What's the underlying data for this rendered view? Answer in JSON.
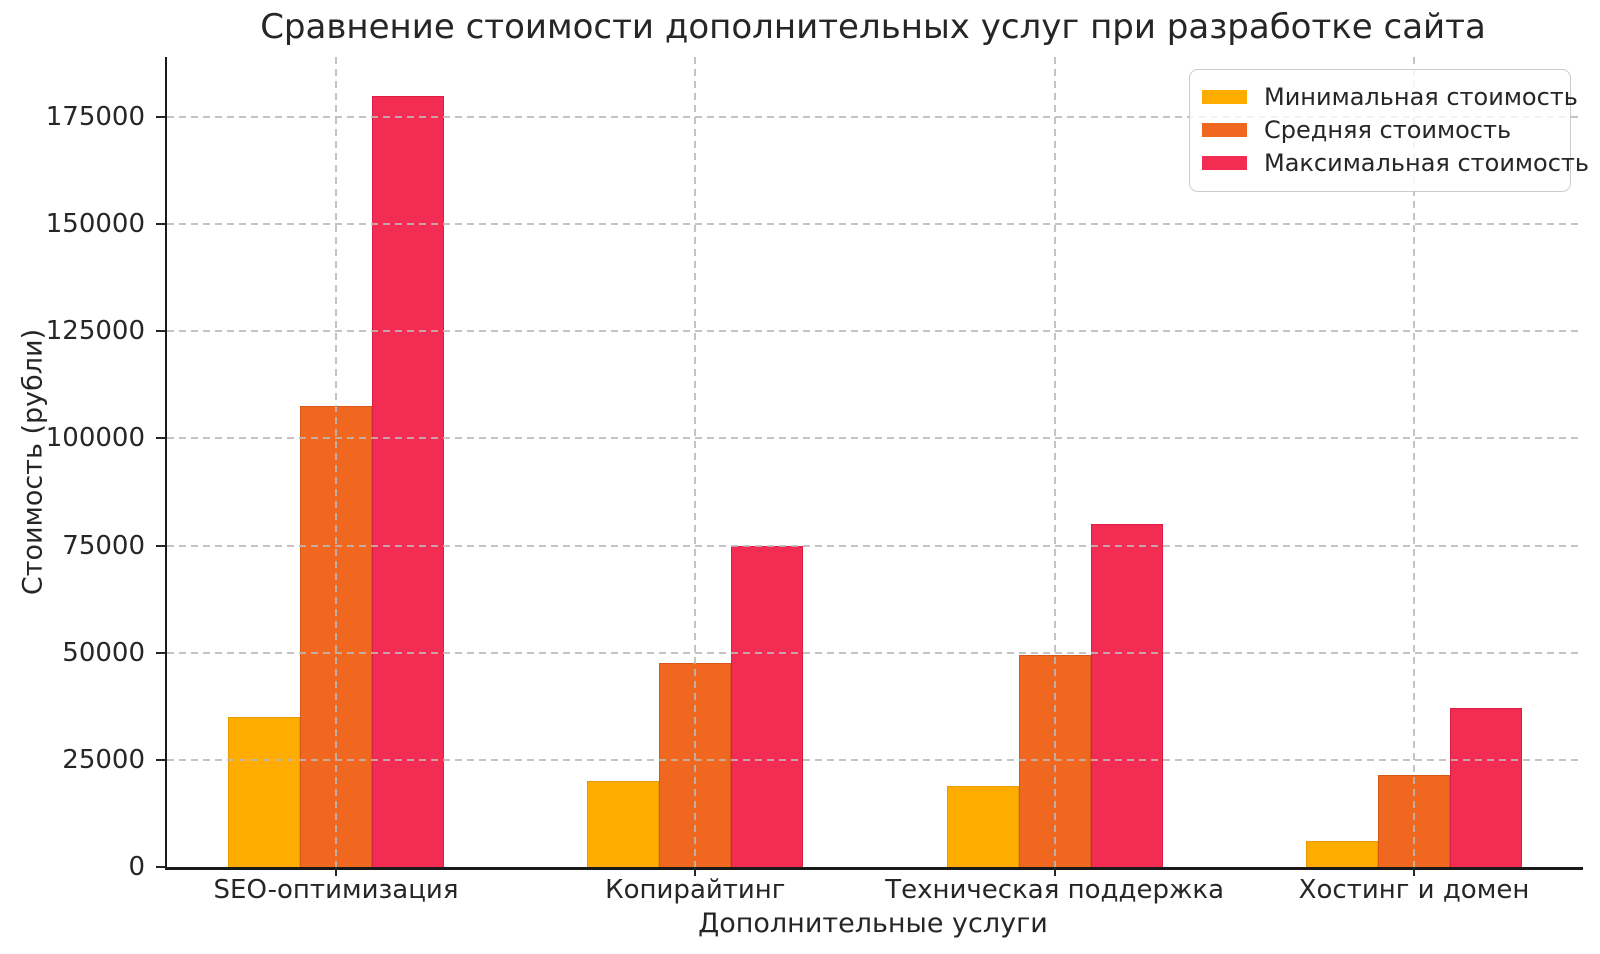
{
  "chart_data": {
    "type": "bar",
    "title": "Сравнение стоимости дополнительных услуг при разработке сайта",
    "xlabel": "Дополнительные услуги",
    "ylabel": "Стоимость (рубли)",
    "categories": [
      "SEO-оптимизация",
      "Копирайтинг",
      "Техническая поддержка",
      "Хостинг и домен"
    ],
    "series": [
      {
        "name": "Минимальная стоимость",
        "color": "#FFAC00",
        "edge_color": "#E79B00",
        "values": [
          35000,
          20000,
          19000,
          6000
        ]
      },
      {
        "name": "Средняя стоимость",
        "color": "#F0681F",
        "edge_color": "#D8581A",
        "values": [
          107500,
          47500,
          49500,
          21500
        ]
      },
      {
        "name": "Максимальная стоимость",
        "color": "#F22C52",
        "edge_color": "#DA1F45",
        "values": [
          180000,
          75000,
          80000,
          37000
        ]
      }
    ],
    "ylim": [
      0,
      189000
    ],
    "yticks": [
      0,
      25000,
      50000,
      75000,
      100000,
      125000,
      150000,
      175000
    ],
    "grid": true,
    "grid_style": "dashed",
    "grid_color": "#c9c9c9",
    "legend_position": "upper right",
    "text_color": "#262626",
    "axis_color": "#1a1a1a",
    "background_color": "#ffffff"
  }
}
